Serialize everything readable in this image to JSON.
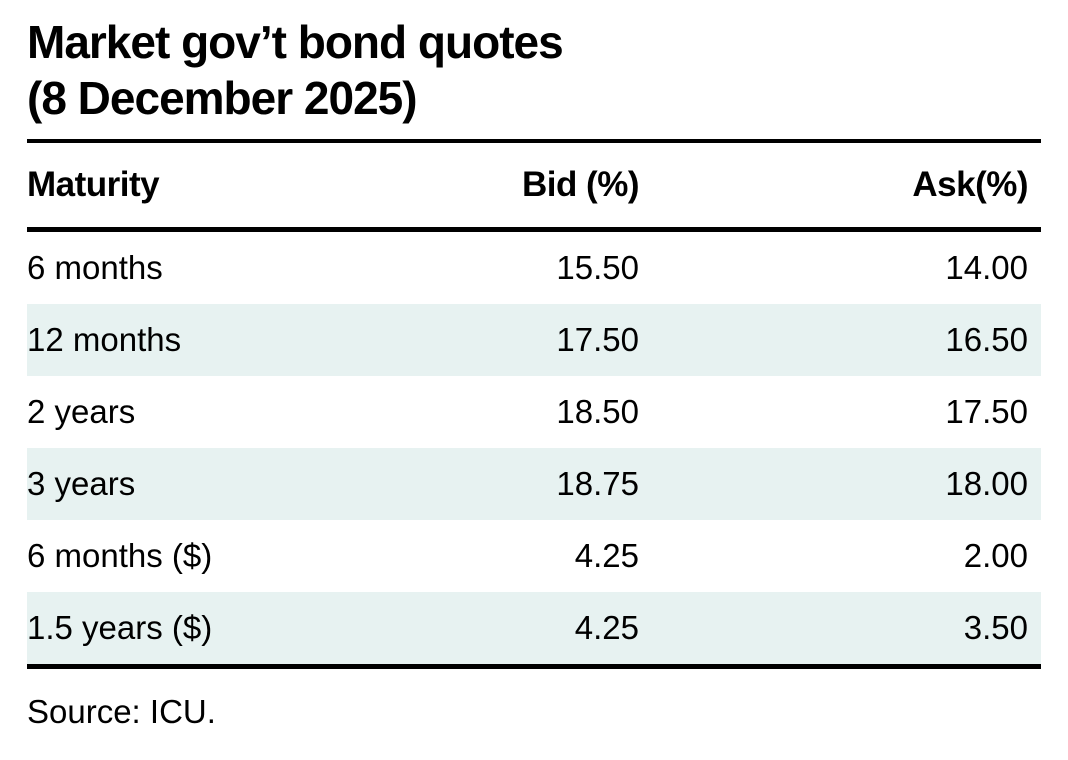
{
  "title": {
    "line1": "Market gov’t bond quotes",
    "line2": "(8 December 2025)"
  },
  "table": {
    "columns": [
      {
        "label": "Maturity"
      },
      {
        "label": "Bid (%)"
      },
      {
        "label": "Ask(%)"
      }
    ],
    "rows": [
      {
        "maturity": "6 months",
        "bid": "15.50",
        "ask": "14.00"
      },
      {
        "maturity": "12 months",
        "bid": "17.50",
        "ask": "16.50"
      },
      {
        "maturity": "2 years",
        "bid": "18.50",
        "ask": "17.50"
      },
      {
        "maturity": "3 years",
        "bid": "18.75",
        "ask": "18.00"
      },
      {
        "maturity": "6 months ($)",
        "bid": "4.25",
        "ask": "2.00"
      },
      {
        "maturity": "1.5 years ($)",
        "bid": "4.25",
        "ask": "3.50"
      }
    ]
  },
  "source": "Source: ICU.",
  "colors": {
    "row_alt_background": "#e7f2f1",
    "rule": "#000000",
    "text": "#000000",
    "background": "#ffffff"
  }
}
